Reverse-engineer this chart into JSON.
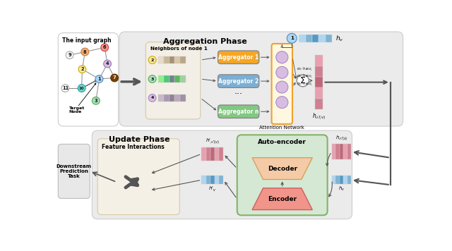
{
  "bg_color": "#ffffff",
  "agg_phase_label": "Aggregation Phase",
  "update_phase_label": "Update Phase",
  "graph_title": "The input graph",
  "neighbor_label": "Neighbors of node 1",
  "aggregator_colors": [
    "#f5a623",
    "#7bafd4",
    "#82c882"
  ],
  "aggregator_labels": [
    "Aggregator 1",
    "Aggregator 2",
    "Aggregator n"
  ],
  "attention_label": "Attention Network",
  "autoencoder_label": "Auto-encoder",
  "decoder_label": "Decoder",
  "encoder_label": "Encoder",
  "feature_label": "Feature Interactions",
  "downstream_label": "Downstream\nPrediction\nTask",
  "sum_label": "Σ",
  "graph_node_colors": {
    "9": "#f5f5f5",
    "8": "#f0b27a",
    "6": "#f1948a",
    "4": "#d7bde2",
    "2": "#f9e79f",
    "1": "#aed6f1",
    "3": "#a9dfbf",
    "7": "#7b3f00",
    "10": "#76d7c4",
    "11": "#f5f5f5"
  },
  "graph_node_ec": {
    "9": "#aaaaaa",
    "8": "#cc7733",
    "6": "#cc4444",
    "4": "#9977bb",
    "2": "#ccaa00",
    "1": "#5588bb",
    "3": "#55aa55",
    "7": "#553300",
    "10": "#2299aa",
    "11": "#aaaaaa"
  },
  "strip2": [
    "#e8dcc8",
    "#c8b89a",
    "#a89070",
    "#d8c8a8",
    "#b8a888"
  ],
  "strip3": [
    "#90ee90",
    "#50c878",
    "#708090",
    "#5cb85c",
    "#a0d0a0"
  ],
  "strip4": [
    "#c8b8c8",
    "#a898b0",
    "#908098",
    "#baaaba",
    "#a090a8"
  ],
  "pink_bar": [
    "#e8a0b0",
    "#d08090",
    "#c06878",
    "#e8a0b0",
    "#d08090"
  ],
  "blue_bar": [
    "#aed6f1",
    "#7fb3d3",
    "#5499c7",
    "#aed6f1",
    "#7fb3d3"
  ],
  "attn_node_color": "#d7bde2",
  "attn_node_ec": "#aa88cc",
  "attn_box_color": "#fff8e0",
  "attn_box_ec": "#f0a030"
}
